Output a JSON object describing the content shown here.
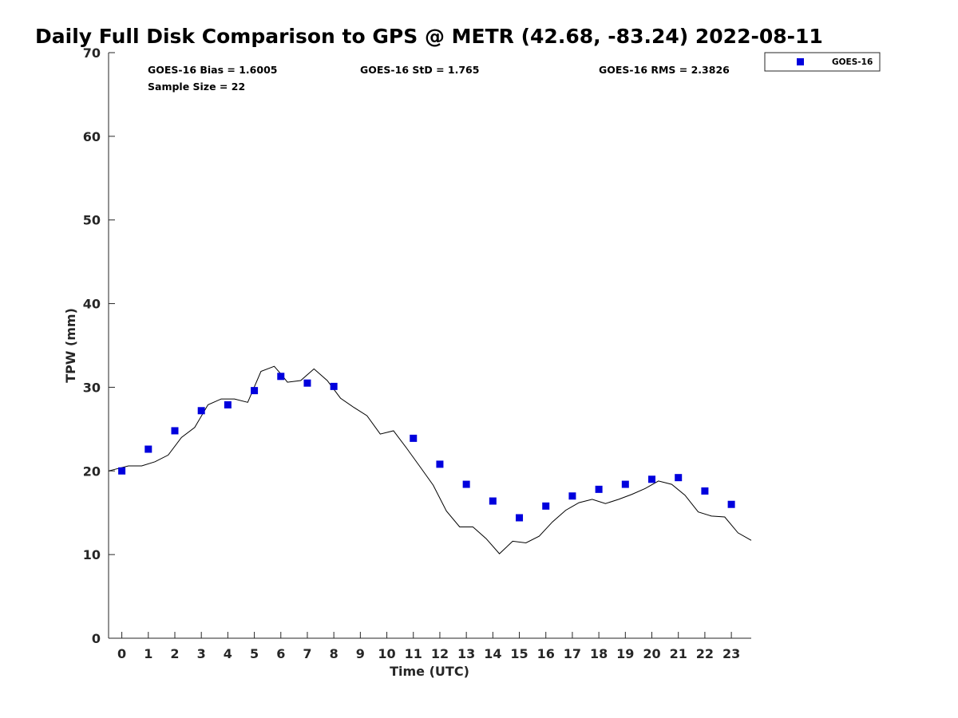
{
  "chart_data": {
    "type": "scatter",
    "title": "Daily Full Disk Comparison to GPS @ METR (42.68, -83.24) 2022-08-11",
    "xlabel": "Time (UTC)",
    "ylabel": "TPW (mm)",
    "xlim": [
      -0.5,
      23.75
    ],
    "ylim": [
      0,
      70
    ],
    "x_ticks": [
      0,
      1,
      2,
      3,
      4,
      5,
      6,
      7,
      8,
      9,
      10,
      11,
      12,
      13,
      14,
      15,
      16,
      17,
      18,
      19,
      20,
      21,
      22,
      23
    ],
    "y_ticks": [
      0,
      10,
      20,
      30,
      40,
      50,
      60,
      70
    ],
    "stats": {
      "bias": "GOES-16 Bias = 1.6005",
      "std": "GOES-16 StD = 1.765",
      "rms": "GOES-16 RMS = 2.3826",
      "sample": "Sample Size = 22"
    },
    "legend": {
      "label": "GOES-16",
      "position": "top-right outside"
    },
    "series": [
      {
        "name": "GOES-16",
        "kind": "markers",
        "color": "#0000dd",
        "x": [
          0,
          1,
          2,
          3,
          4,
          5,
          6,
          7,
          8,
          11,
          12,
          13,
          14,
          15,
          16,
          17,
          18,
          19,
          20,
          21,
          22,
          23
        ],
        "y": [
          20.0,
          22.6,
          24.8,
          27.2,
          27.9,
          29.6,
          31.3,
          30.5,
          30.1,
          23.9,
          20.8,
          18.4,
          16.4,
          14.4,
          15.8,
          17.0,
          17.8,
          18.4,
          19.0,
          19.2,
          17.6,
          16.0
        ]
      },
      {
        "name": "GPS",
        "kind": "line",
        "color": "#000000",
        "x": [
          -0.5,
          -0.25,
          0.25,
          0.75,
          1.25,
          1.75,
          2.25,
          2.75,
          3.25,
          3.75,
          4.25,
          4.75,
          5.25,
          5.75,
          6.0,
          6.25,
          6.75,
          7.25,
          7.75,
          8.25,
          8.75,
          9.25,
          9.75,
          10.25,
          10.75,
          11.25,
          11.75,
          12.25,
          12.75,
          13.25,
          13.75,
          14.25,
          14.75,
          15.25,
          15.75,
          16.25,
          16.75,
          17.25,
          17.75,
          18.25,
          18.75,
          19.25,
          19.75,
          20.25,
          20.75,
          21.25,
          21.75,
          22.25,
          22.75,
          23.25,
          23.75
        ],
        "y": [
          20.0,
          20.2,
          20.6,
          20.6,
          21.1,
          21.9,
          24.0,
          25.2,
          27.9,
          28.6,
          28.6,
          28.2,
          31.9,
          32.5,
          31.6,
          30.6,
          30.8,
          32.2,
          30.8,
          28.7,
          27.6,
          26.6,
          24.4,
          24.8,
          22.7,
          20.5,
          18.3,
          15.2,
          13.3,
          13.3,
          11.9,
          10.1,
          11.6,
          11.4,
          12.2,
          13.9,
          15.3,
          16.2,
          16.6,
          16.1,
          16.6,
          17.2,
          17.9,
          18.8,
          18.4,
          17.1,
          15.1,
          14.6,
          14.5,
          12.6,
          11.7
        ]
      }
    ]
  }
}
